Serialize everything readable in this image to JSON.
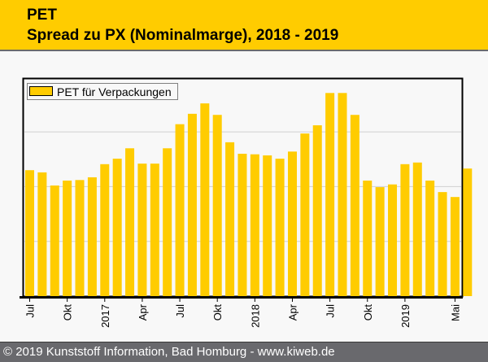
{
  "header": {
    "title": "PET",
    "subtitle": "Spread zu PX (Nominalmarge), 2018 - 2019"
  },
  "footer": {
    "text": "© 2019 Kunststoff Information, Bad Homburg - www.kiweb.de"
  },
  "colors": {
    "bar": "#ffcc00",
    "header_bg": "#ffcc00",
    "footer_bg": "#69696d",
    "gridline": "#d0d0d0"
  },
  "chart_data": {
    "type": "bar",
    "title": "Spread zu PX (Nominalmarge), 2018 - 2019",
    "xlabel": "",
    "ylabel": "",
    "y_units_note": "No y-axis tick labels shown; values in relative gridline units (gridlines at 1, 2, 3)",
    "ylim": [
      0,
      4.0
    ],
    "gridlines": [
      1,
      2,
      3
    ],
    "grid": true,
    "legend": {
      "position": "top-left",
      "entries": [
        "PET für Verpackungen"
      ]
    },
    "categories": [
      "2016-07",
      "2016-08",
      "2016-09",
      "2016-10",
      "2016-11",
      "2016-12",
      "2017-01",
      "2017-02",
      "2017-03",
      "2017-04",
      "2017-05",
      "2017-06",
      "2017-07",
      "2017-08",
      "2017-09",
      "2017-10",
      "2017-11",
      "2017-12",
      "2018-01",
      "2018-02",
      "2018-03",
      "2018-04",
      "2018-05",
      "2018-06",
      "2018-07",
      "2018-08",
      "2018-09",
      "2018-10",
      "2018-11",
      "2018-12",
      "2019-01",
      "2019-02",
      "2019-03",
      "2019-04",
      "2019-05",
      "2019-06"
    ],
    "tick_labels": [
      {
        "index": 0,
        "label": "Jul"
      },
      {
        "index": 3,
        "label": "Okt"
      },
      {
        "index": 6,
        "label": "2017"
      },
      {
        "index": 9,
        "label": "Apr"
      },
      {
        "index": 12,
        "label": "Jul"
      },
      {
        "index": 15,
        "label": "Okt"
      },
      {
        "index": 18,
        "label": "2018"
      },
      {
        "index": 21,
        "label": "Apr"
      },
      {
        "index": 24,
        "label": "Jul"
      },
      {
        "index": 27,
        "label": "Okt"
      },
      {
        "index": 30,
        "label": "2019"
      },
      {
        "index": 34,
        "label": "Mai"
      }
    ],
    "series": [
      {
        "name": "PET für Verpackungen",
        "values": [
          2.3,
          2.26,
          2.02,
          2.11,
          2.12,
          2.17,
          2.41,
          2.51,
          2.7,
          2.42,
          2.42,
          2.7,
          3.14,
          3.33,
          3.52,
          3.31,
          2.81,
          2.6,
          2.59,
          2.57,
          2.51,
          2.64,
          2.97,
          3.12,
          3.71,
          3.71,
          3.31,
          2.11,
          1.99,
          2.04,
          2.41,
          2.44,
          2.11,
          1.9,
          1.81,
          2.33
        ]
      }
    ]
  }
}
